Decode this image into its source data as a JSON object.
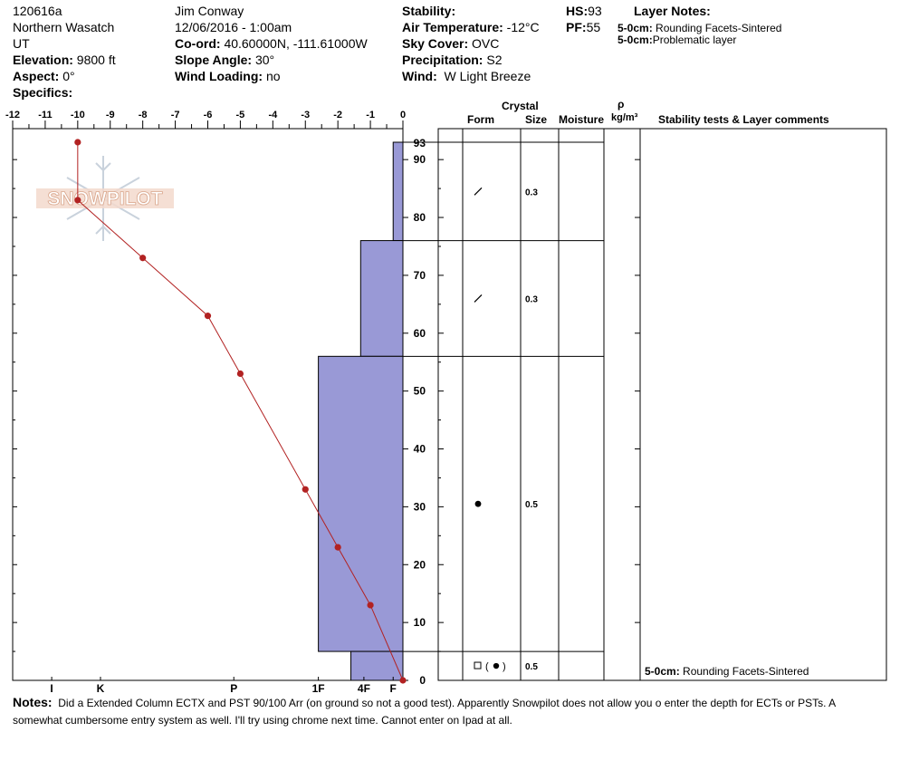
{
  "header": {
    "site_id": "120616a",
    "region": "Northern Wasatch",
    "state": "UT",
    "elevation": {
      "label": "Elevation:",
      "value": "9800 ft"
    },
    "aspect": {
      "label": "Aspect:",
      "value": "0°"
    },
    "specifics": {
      "label": "Specifics:",
      "value": ""
    },
    "observer": "Jim Conway",
    "datetime": "12/06/2016 - 1:00am",
    "coord": {
      "label": "Co-ord:",
      "value": "40.60000N, -111.61000W"
    },
    "slope": {
      "label": "Slope Angle:",
      "value": "30°"
    },
    "wind_loading": {
      "label": "Wind Loading:",
      "value": "no"
    },
    "stability": {
      "label": "Stability:",
      "value": ""
    },
    "air_temp": {
      "label": "Air Temperature:",
      "value": "-12°C"
    },
    "sky": {
      "label": "Sky Cover:",
      "value": "OVC"
    },
    "precip": {
      "label": "Precipitation:",
      "value": "S2"
    },
    "wind": {
      "label": "Wind:",
      "value": "W Light Breeze"
    },
    "hs": {
      "label": "HS:",
      "value": "93"
    },
    "pf": {
      "label": "PF:",
      "value": "55"
    },
    "layer_notes": {
      "label": "Layer Notes:",
      "items": [
        {
          "depth": "5-0cm:",
          "text": "Rounding Facets-Sintered"
        },
        {
          "depth": "5-0cm:",
          "text": "Problematic layer"
        }
      ]
    }
  },
  "columns": {
    "crystal": "Crystal",
    "form": "Form",
    "size": "Size",
    "moisture": "Moisture",
    "rho": "ρ",
    "density_unit": "kg/m³",
    "stability_tests": "Stability tests & Layer comments"
  },
  "logo_text": "SNOWPILOT",
  "layers": [
    {
      "top": 93,
      "bottom": 76,
      "size": "0.3",
      "form_icon": "decomposing-slash-icon"
    },
    {
      "top": 76,
      "bottom": 56,
      "size": "0.3",
      "form_icon": "decomposing-slash-icon"
    },
    {
      "top": 56,
      "bottom": 5,
      "size": "0.5",
      "form_icon": "rounded-dot-icon"
    },
    {
      "top": 5,
      "bottom": 0,
      "size": "0.5",
      "form_icon": "faceted-rounding-icon"
    }
  ],
  "layer_comments": [
    {
      "depth": "5-0cm:",
      "text": "Rounding Facets-Sintered"
    }
  ],
  "notes": {
    "label": "Notes:",
    "text": "Did a Extended Column ECTX and PST 90/100 Arr (on ground so not a good test). Apparently Snowpilot does not allow you o enter the depth for ECTs or PSTs. A somewhat cumbersome entry system as well. I'll try using chrome next time. Cannot enter on Ipad at all."
  },
  "colors": {
    "hardness_fill": "#9999d6",
    "temperature_line": "#b22222",
    "temperature_point": "#b22222"
  },
  "chart_data": {
    "type": "line",
    "title": "",
    "temperature_axis": {
      "label": "",
      "range": [
        -12,
        0
      ],
      "ticks": [
        -12,
        -11,
        -10,
        -9,
        -8,
        -7,
        -6,
        -5,
        -4,
        -3,
        -2,
        -1,
        0
      ]
    },
    "depth_axis": {
      "range": [
        0,
        93
      ],
      "ticks": [
        0,
        10,
        20,
        30,
        40,
        50,
        60,
        70,
        80,
        90
      ],
      "top_label": "93"
    },
    "hardness_axis": {
      "labels": [
        "I",
        "K",
        "P",
        "1F",
        "4F",
        "F"
      ],
      "label_positions_temp_units": [
        -10.8,
        -9.3,
        -5.2,
        -2.6,
        -1.2,
        -0.3
      ]
    },
    "temperature_profile": {
      "name": "",
      "points": [
        {
          "temp": -10,
          "depth": 93
        },
        {
          "temp": -10,
          "depth": 83
        },
        {
          "temp": -8,
          "depth": 73
        },
        {
          "temp": -6,
          "depth": 63
        },
        {
          "temp": -5,
          "depth": 53
        },
        {
          "temp": -3,
          "depth": 33
        },
        {
          "temp": -2,
          "depth": 23
        },
        {
          "temp": -1,
          "depth": 13
        },
        {
          "temp": 0,
          "depth": 0
        }
      ]
    },
    "hardness_profile": [
      {
        "top": 93,
        "bottom": 76,
        "hardness_temp_units": -0.3
      },
      {
        "top": 76,
        "bottom": 56,
        "hardness_temp_units": -1.3
      },
      {
        "top": 56,
        "bottom": 5,
        "hardness_temp_units": -2.6
      },
      {
        "top": 5,
        "bottom": 0,
        "hardness_temp_units": -1.6
      }
    ]
  }
}
